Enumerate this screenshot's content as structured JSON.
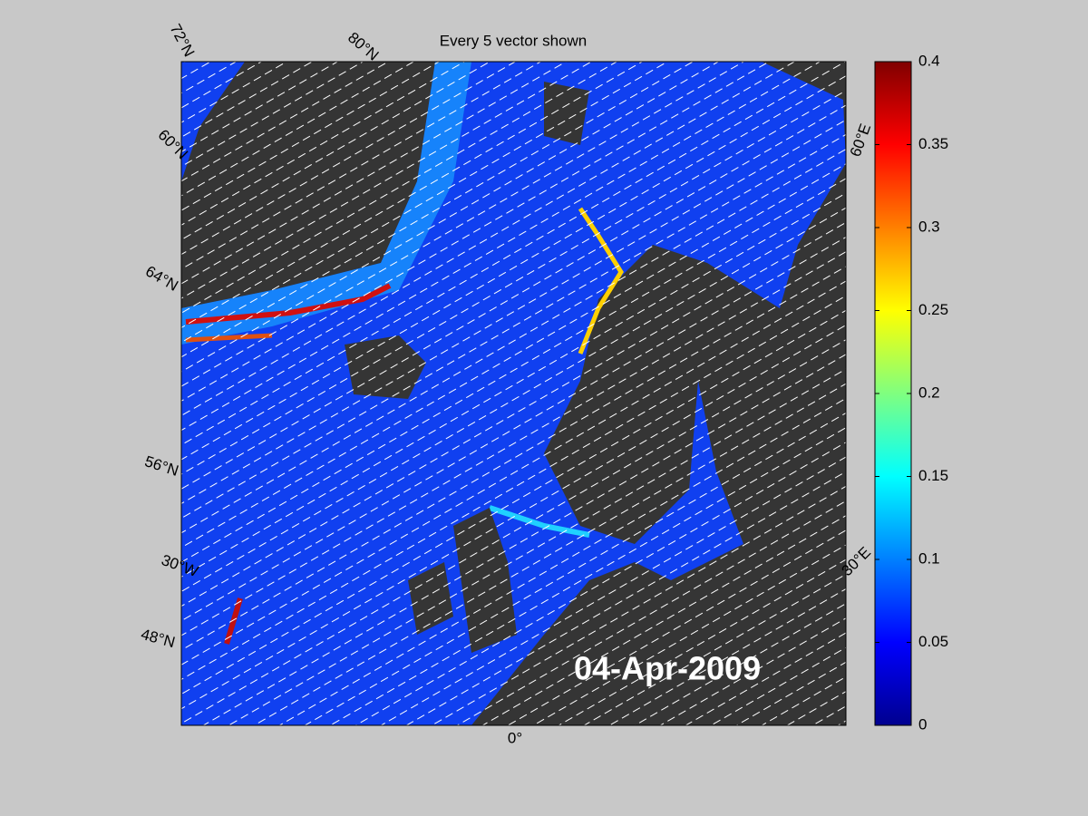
{
  "title": "Every 5 vector shown",
  "date_label": "04-Apr-2009",
  "graticule_labels": [
    "72°N",
    "80°N",
    "60°N",
    "64°N",
    "56°N",
    "30°W",
    "48°N",
    "0°",
    "30°E",
    "60°E"
  ],
  "colorbar": {
    "lim": [
      0,
      0.4
    ],
    "ticks": [
      0,
      0.05,
      0.1,
      0.15,
      0.2,
      0.25,
      0.3,
      0.35,
      0.4
    ]
  }
}
